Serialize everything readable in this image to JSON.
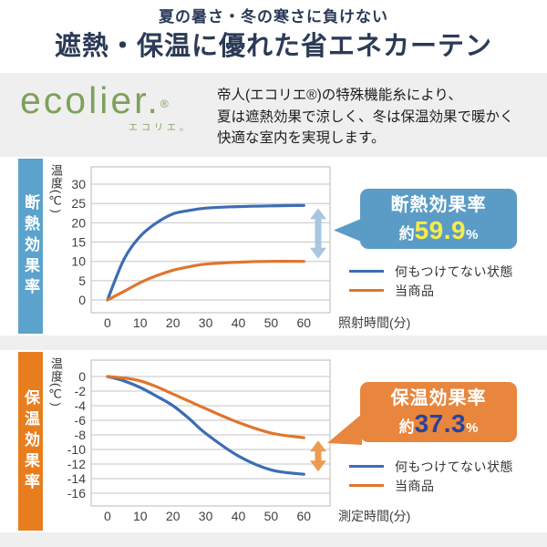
{
  "header": {
    "subtitle": "夏の暑さ・冬の寒さに負けない",
    "title": "遮熱・保温に優れた省エネカーテン",
    "text_color": "#2b3a55"
  },
  "brand": {
    "logo": "ecolier.",
    "reg_mark": "®",
    "kana": "エコリエ。",
    "color": "#7ea15c"
  },
  "intro": {
    "lines": [
      "帝人(エコリエ®)の特殊機能糸により、",
      "夏は遮熱効果で涼しく、冬は保温効果で暖かく",
      "快適な室内を実現します。"
    ]
  },
  "chart_data": [
    {
      "type": "line",
      "section_label": "断熱効果率",
      "sidebar_color": "#5ba3cc",
      "ylabel": "温度(℃)",
      "xlabel": "照射時間(分)",
      "x": [
        0,
        5,
        10,
        15,
        20,
        25,
        30,
        40,
        50,
        60
      ],
      "xticks": [
        0,
        10,
        20,
        30,
        40,
        50,
        60
      ],
      "yticks": [
        30,
        25,
        20,
        15,
        10,
        5,
        0
      ],
      "ylim": [
        -3.3,
        34.5
      ],
      "xlim": [
        -5,
        68
      ],
      "grid": true,
      "legend_position": "right-bottom",
      "series": [
        {
          "name": "何もつけてない状態",
          "color": "#3d6db4",
          "values": [
            0,
            10.5,
            16.5,
            20,
            22.3,
            23.2,
            23.8,
            24.2,
            24.4,
            24.5
          ]
        },
        {
          "name": "当商品",
          "color": "#e0752c",
          "values": [
            0,
            2.2,
            4.5,
            6.3,
            7.7,
            8.6,
            9.3,
            9.8,
            10,
            10
          ]
        }
      ],
      "arrow_color": "#a9c6e0",
      "annotation": {
        "title": "断熱効果率",
        "prefix": "約",
        "value": "59.9",
        "unit": "%",
        "bg": "#5b9cc7",
        "value_color": "#f7ec4a"
      }
    },
    {
      "type": "line",
      "section_label": "保温効果率",
      "sidebar_color": "#e87d1e",
      "ylabel": "温度(℃)",
      "xlabel": "測定時間(分)",
      "x": [
        0,
        5,
        10,
        15,
        20,
        25,
        30,
        40,
        50,
        60
      ],
      "xticks": [
        0,
        10,
        20,
        30,
        40,
        50,
        60
      ],
      "yticks": [
        0,
        -2,
        -4,
        -6,
        -8,
        -10,
        -12,
        -14,
        -16
      ],
      "ylim": [
        -17.75,
        2.25
      ],
      "xlim": [
        -5,
        68
      ],
      "grid": true,
      "legend_position": "right-bottom",
      "series": [
        {
          "name": "何もつけてない状態",
          "color": "#3d6db4",
          "values": [
            0,
            -0.6,
            -1.5,
            -2.7,
            -4,
            -5.8,
            -7.8,
            -10.9,
            -12.8,
            -13.4
          ]
        },
        {
          "name": "当商品",
          "color": "#e0752c",
          "values": [
            0,
            -0.2,
            -0.6,
            -1.4,
            -2.4,
            -3.4,
            -4.4,
            -6.3,
            -7.75,
            -8.4
          ]
        }
      ],
      "arrow_color": "#ee9b52",
      "annotation": {
        "title": "保温効果率",
        "prefix": "約",
        "value": "37.3",
        "unit": "%",
        "bg": "#e8863d",
        "value_color": "#28439c"
      }
    }
  ]
}
